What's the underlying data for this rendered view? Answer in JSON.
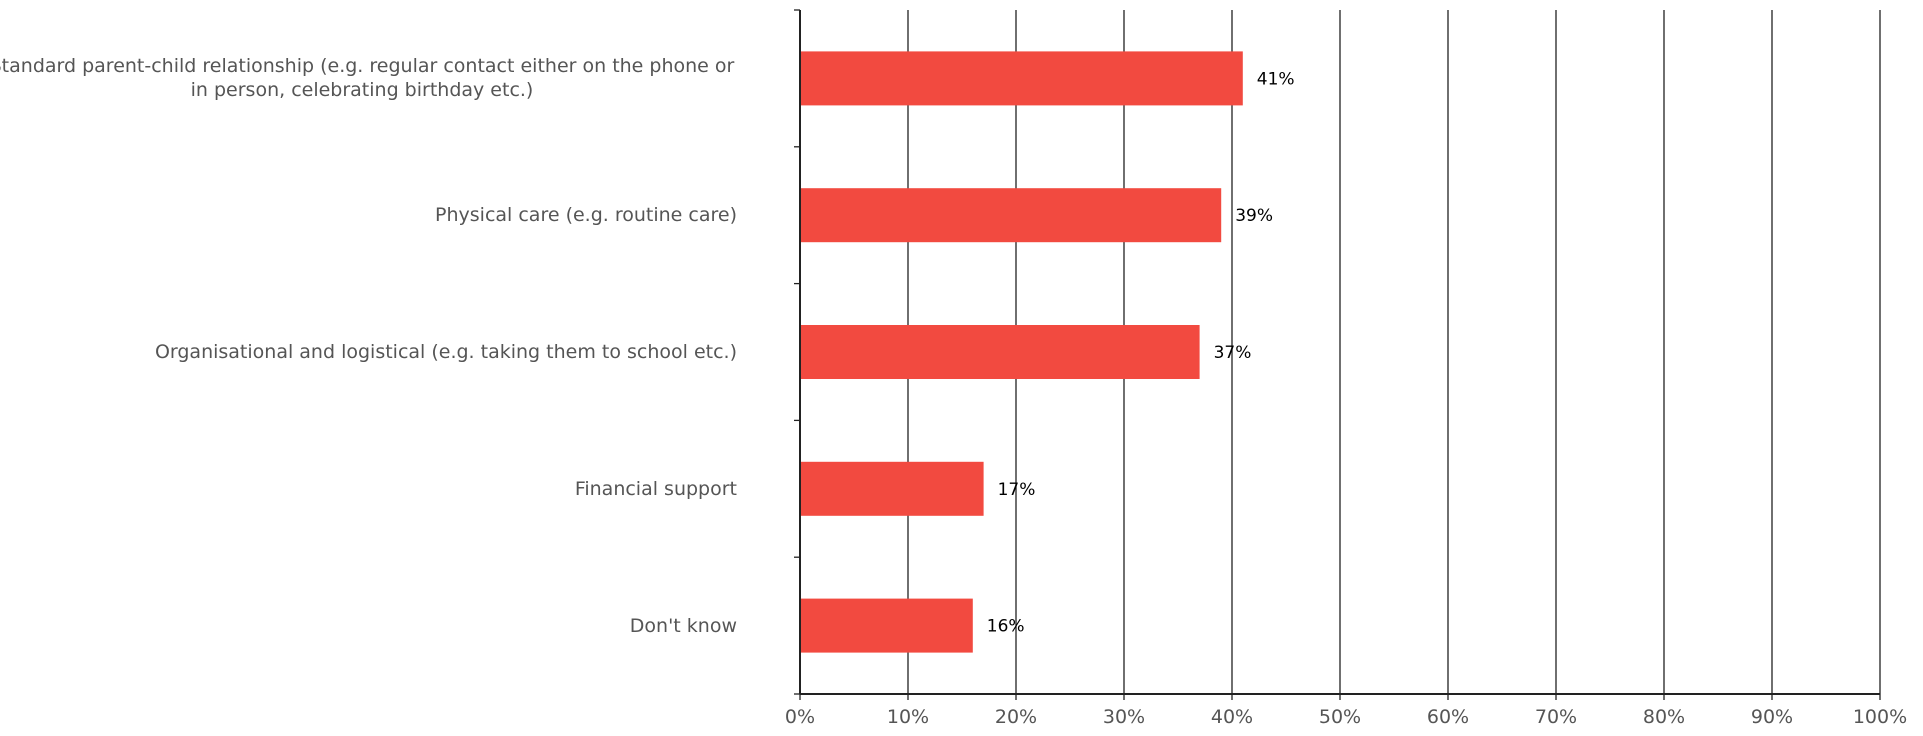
{
  "colors": {
    "bar": "#F24A40",
    "gridline": "#222222",
    "axis_label_text": "#555555",
    "data_label_text": "#000000"
  },
  "chart_data": {
    "type": "bar",
    "orientation": "horizontal",
    "categories": [
      "Standard parent-child relationship (e.g. regular contact either on the phone or in person, celebrating birthday etc.)",
      "Physical care (e.g. routine care)",
      "Organisational and logistical (e.g. taking them to school etc.)",
      "Financial support",
      "Don't know"
    ],
    "values": [
      41,
      39,
      37,
      17,
      16
    ],
    "data_labels": [
      "41%",
      "39%",
      "37%",
      "17%",
      "16%"
    ],
    "xlim": [
      0,
      100
    ],
    "x_ticks": [
      0,
      10,
      20,
      30,
      40,
      50,
      60,
      70,
      80,
      90,
      100
    ],
    "x_tick_labels": [
      "0%",
      "10%",
      "20%",
      "30%",
      "40%",
      "50%",
      "60%",
      "70%",
      "80%",
      "90%",
      "100%"
    ],
    "grid": "vertical",
    "legend": "none"
  }
}
